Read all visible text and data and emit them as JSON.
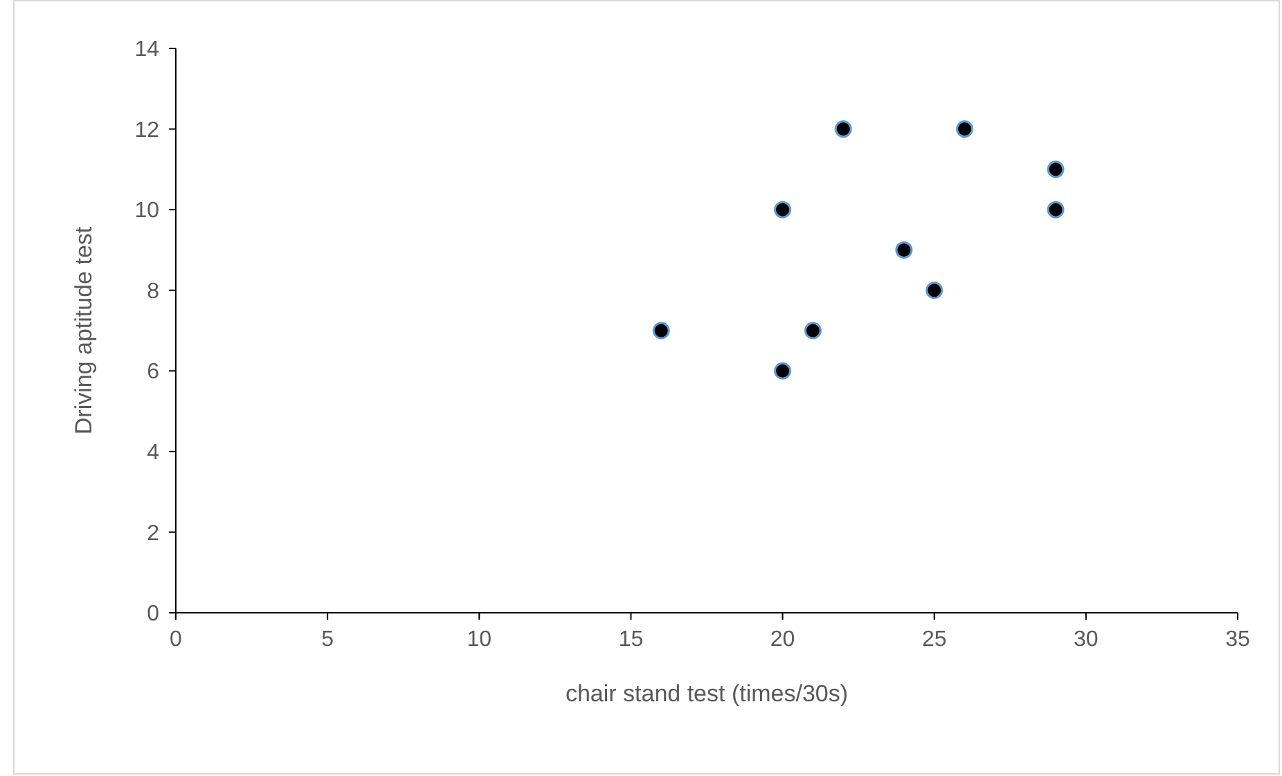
{
  "chart_data": {
    "type": "scatter",
    "xlabel": "chair stand test (times/30s)",
    "ylabel": "Driving aptitude test",
    "x": [
      16,
      20,
      20,
      21,
      22,
      24,
      25,
      26,
      29,
      29
    ],
    "values": [
      7,
      10,
      6,
      7,
      12,
      9,
      8,
      12,
      11,
      10
    ],
    "color": "#000000",
    "marker": "circle",
    "grid": false,
    "xlim": [
      0,
      35
    ],
    "xticks": [
      0,
      5,
      10,
      15,
      20,
      25,
      30,
      35
    ],
    "ylim": [
      0,
      14
    ],
    "yticks": [
      0,
      2,
      4,
      6,
      8,
      10,
      12,
      14
    ]
  }
}
